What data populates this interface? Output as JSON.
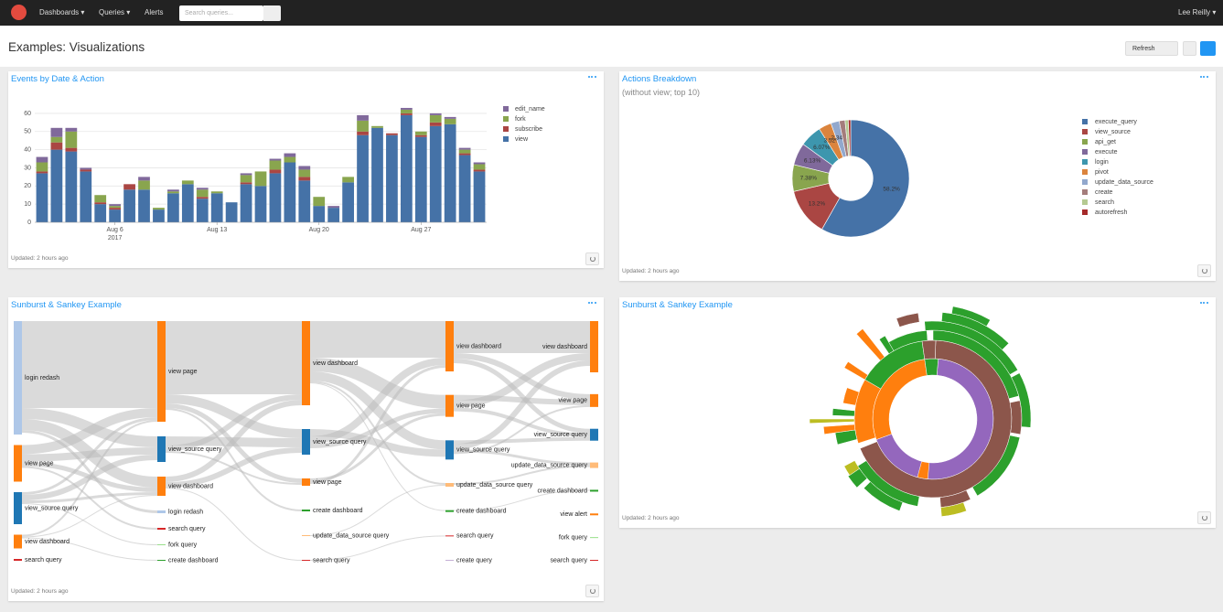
{
  "nav": {
    "menu": [
      "Dashboards",
      "Queries",
      "Alerts"
    ],
    "search_placeholder": "Search queries...",
    "user": "Lee Reilly"
  },
  "page": {
    "title": "Examples: Visualizations",
    "refresh_button": "Refresh"
  },
  "widgets": [
    {
      "title": "Events by Date & Action",
      "updated": "Updated: 2 hours ago",
      "chart_data": {
        "type": "bar",
        "stacked": true,
        "grid": true,
        "legend": "right",
        "x": [
          "2017-08-01",
          "2017-08-02",
          "2017-08-03",
          "2017-08-04",
          "2017-08-05",
          "2017-08-06",
          "2017-08-07",
          "2017-08-08",
          "2017-08-09",
          "2017-08-10",
          "2017-08-11",
          "2017-08-12",
          "2017-08-13",
          "2017-08-14",
          "2017-08-15",
          "2017-08-16",
          "2017-08-17",
          "2017-08-18",
          "2017-08-19",
          "2017-08-20",
          "2017-08-21",
          "2017-08-22",
          "2017-08-23",
          "2017-08-24",
          "2017-08-25",
          "2017-08-26",
          "2017-08-27",
          "2017-08-28",
          "2017-08-29",
          "2017-08-30",
          "2017-08-31"
        ],
        "series": [
          {
            "name": "view",
            "color": "#4572a7",
            "values": [
              27,
              40,
              39,
              28,
              10,
              7,
              18,
              18,
              7,
              16,
              21,
              13,
              16,
              11,
              21,
              20,
              27,
              33,
              23,
              9,
              8,
              22,
              48,
              52,
              48,
              59,
              47,
              53,
              54,
              37,
              28
            ]
          },
          {
            "name": "subscribe",
            "color": "#aa4643",
            "values": [
              1,
              4,
              2,
              1,
              1,
              1,
              3,
              0,
              0,
              0,
              0,
              1,
              0,
              0,
              1,
              0,
              2,
              0,
              2,
              0,
              0,
              0,
              2,
              0,
              1,
              1,
              1,
              2,
              0,
              1,
              1
            ]
          },
          {
            "name": "fork",
            "color": "#89a54e",
            "values": [
              5,
              3,
              9,
              0,
              4,
              1,
              0,
              5,
              1,
              1,
              2,
              4,
              1,
              0,
              4,
              8,
              5,
              3,
              4,
              5,
              0,
              3,
              6,
              1,
              0,
              2,
              2,
              4,
              3,
              2,
              3
            ]
          },
          {
            "name": "edit_name",
            "color": "#80699b",
            "values": [
              3,
              5,
              2,
              1,
              0,
              1,
              0,
              2,
              0,
              1,
              0,
              1,
              0,
              0,
              1,
              0,
              1,
              2,
              2,
              0,
              1,
              0,
              3,
              0,
              0,
              1,
              0,
              1,
              1,
              1,
              1
            ]
          }
        ],
        "ylim": [
          0,
          65
        ],
        "yticks": [
          0,
          10,
          20,
          30,
          40,
          50,
          60
        ],
        "xticks": [
          {
            "value": "2017-08-06",
            "label": "Aug 6\n2017"
          },
          {
            "value": "2017-08-13",
            "label": "Aug 13"
          },
          {
            "value": "2017-08-20",
            "label": "Aug 20"
          },
          {
            "value": "2017-08-27",
            "label": "Aug 27"
          }
        ]
      }
    },
    {
      "title": "Actions Breakdown",
      "subtitle": "(without view; top 10)",
      "updated": "Updated: 2 hours ago",
      "chart_data": {
        "type": "pie",
        "hole": 0.38,
        "legend": "right",
        "categories": [
          "execute_query",
          "view_source",
          "api_get",
          "execute",
          "login",
          "pivot",
          "update_data_source",
          "create",
          "search",
          "autorefresh"
        ],
        "values": [
          58.2,
          13.2,
          7.38,
          6.13,
          6.07,
          3.52,
          2.34,
          1.6,
          0.9,
          0.66
        ],
        "value_labels": [
          "58.2%",
          "13.2%",
          "7.38%",
          "6.13%",
          "6.07%",
          "3.52%",
          "2.34%",
          null,
          null,
          null
        ],
        "colors": [
          "#4572a7",
          "#aa4643",
          "#89a54e",
          "#80699b",
          "#3d96ae",
          "#db843d",
          "#92a8cd",
          "#a47d7c",
          "#b5ca92",
          "#a52a2a"
        ]
      }
    },
    {
      "title": "Sunburst & Sankey Example",
      "updated": "Updated: 2 hours ago",
      "chart_data": {
        "type": "sankey",
        "columns": [
          [
            {
              "name": "login redash",
              "value": 124,
              "color": "#aec7e8"
            },
            {
              "name": "view page",
              "value": 40,
              "color": "#ff7f0e"
            },
            {
              "name": "view_source query",
              "value": 35,
              "color": "#1f77b4"
            },
            {
              "name": "view dashboard",
              "value": 15,
              "color": "#ff7f0e"
            },
            {
              "name": "search query",
              "value": 2,
              "color": "#d62728"
            }
          ],
          [
            {
              "name": "view page",
              "value": 110,
              "color": "#ff7f0e"
            },
            {
              "name": "view_source query",
              "value": 28,
              "color": "#1f77b4"
            },
            {
              "name": "view dashboard",
              "value": 21,
              "color": "#ff7f0e"
            },
            {
              "name": "login redash",
              "value": 3,
              "color": "#aec7e8"
            },
            {
              "name": "search query",
              "value": 2,
              "color": "#d62728"
            },
            {
              "name": "fork query",
              "value": 1,
              "color": "#98df8a"
            },
            {
              "name": "create dashboard",
              "value": 1,
              "color": "#2ca02c"
            }
          ],
          [
            {
              "name": "view dashboard",
              "value": 92,
              "color": "#ff7f0e"
            },
            {
              "name": "view_source query",
              "value": 28,
              "color": "#1f77b4"
            },
            {
              "name": "view page",
              "value": 8,
              "color": "#ff7f0e"
            },
            {
              "name": "create dashboard",
              "value": 2,
              "color": "#2ca02c"
            },
            {
              "name": "update_data_source query",
              "value": 1,
              "color": "#ffbb78"
            },
            {
              "name": "search query",
              "value": 1,
              "color": "#d62728"
            }
          ],
          [
            {
              "name": "view dashboard",
              "value": 55,
              "color": "#ff7f0e"
            },
            {
              "name": "view page",
              "value": 24,
              "color": "#ff7f0e"
            },
            {
              "name": "view_source query",
              "value": 21,
              "color": "#1f77b4"
            },
            {
              "name": "update_data_source query",
              "value": 4,
              "color": "#ffbb78"
            },
            {
              "name": "create dashboard",
              "value": 2,
              "color": "#2ca02c"
            },
            {
              "name": "search query",
              "value": 1,
              "color": "#d62728"
            },
            {
              "name": "create query",
              "value": 1,
              "color": "#c5b0d5"
            }
          ],
          [
            {
              "name": "view dashboard",
              "value": 56,
              "color": "#ff7f0e"
            },
            {
              "name": "view page",
              "value": 14,
              "color": "#ff7f0e"
            },
            {
              "name": "view_source query",
              "value": 13,
              "color": "#1f77b4"
            },
            {
              "name": "update_data_source query",
              "value": 6,
              "color": "#ffbb78"
            },
            {
              "name": "create dashboard",
              "value": 2,
              "color": "#2ca02c"
            },
            {
              "name": "view alert",
              "value": 2,
              "color": "#ff7f0e"
            },
            {
              "name": "fork query",
              "value": 1,
              "color": "#98df8a"
            },
            {
              "name": "search query",
              "value": 1,
              "color": "#d62728"
            }
          ]
        ],
        "links": [
          [
            {
              "source": "login redash",
              "target": "view page",
              "value": 95
            },
            {
              "source": "login redash",
              "target": "view_source query",
              "value": 12
            },
            {
              "source": "login redash",
              "target": "view dashboard",
              "value": 12
            },
            {
              "source": "login redash",
              "target": "login redash",
              "value": 3
            },
            {
              "source": "view page",
              "target": "view page",
              "value": 10
            },
            {
              "source": "view page",
              "target": "view_source query",
              "value": 8
            },
            {
              "source": "view page",
              "target": "view dashboard",
              "value": 5
            },
            {
              "source": "view page",
              "target": "search query",
              "value": 2
            },
            {
              "source": "view_source query",
              "target": "view page",
              "value": 3
            },
            {
              "source": "view_source query",
              "target": "view_source query",
              "value": 6
            },
            {
              "source": "view_source query",
              "target": "view dashboard",
              "value": 3
            },
            {
              "source": "view_source query",
              "target": "fork query",
              "value": 1
            },
            {
              "source": "view dashboard",
              "target": "view page",
              "value": 2
            },
            {
              "source": "view dashboard",
              "target": "view dashboard",
              "value": 1
            },
            {
              "source": "view dashboard",
              "target": "create dashboard",
              "value": 1
            }
          ],
          [
            {
              "source": "view page",
              "target": "view dashboard",
              "value": 80
            },
            {
              "source": "view page",
              "target": "view_source query",
              "value": 10
            },
            {
              "source": "view page",
              "target": "view page",
              "value": 5
            },
            {
              "source": "view page",
              "target": "create dashboard",
              "value": 2
            },
            {
              "source": "view_source query",
              "target": "view_source query",
              "value": 10
            },
            {
              "source": "view_source query",
              "target": "view dashboard",
              "value": 6
            },
            {
              "source": "view_source query",
              "target": "view page",
              "value": 2
            },
            {
              "source": "view dashboard",
              "target": "view dashboard",
              "value": 6
            },
            {
              "source": "view dashboard",
              "target": "view_source query",
              "value": 6
            },
            {
              "source": "view dashboard",
              "target": "search query",
              "value": 1
            }
          ],
          [
            {
              "source": "view dashboard",
              "target": "view dashboard",
              "value": 40
            },
            {
              "source": "view dashboard",
              "target": "view page",
              "value": 15
            },
            {
              "source": "view dashboard",
              "target": "view_source query",
              "value": 10
            },
            {
              "source": "view dashboard",
              "target": "update_data_source query",
              "value": 2
            },
            {
              "source": "view dashboard",
              "target": "create dashboard",
              "value": 1
            },
            {
              "source": "view_source query",
              "target": "view_source query",
              "value": 8
            },
            {
              "source": "view_source query",
              "target": "view dashboard",
              "value": 8
            },
            {
              "source": "view_source query",
              "target": "view page",
              "value": 5
            },
            {
              "source": "view page",
              "target": "view page",
              "value": 3
            },
            {
              "source": "view page",
              "target": "view dashboard",
              "value": 3
            },
            {
              "source": "update_data_source query",
              "target": "update_data_source query",
              "value": 1
            },
            {
              "source": "search query",
              "target": "search query",
              "value": 1
            }
          ],
          [
            {
              "source": "view dashboard",
              "target": "view dashboard",
              "value": 35
            },
            {
              "source": "view dashboard",
              "target": "view page",
              "value": 6
            },
            {
              "source": "view dashboard",
              "target": "view_source query",
              "value": 5
            },
            {
              "source": "view page",
              "target": "view page",
              "value": 6
            },
            {
              "source": "view page",
              "target": "view dashboard",
              "value": 8
            },
            {
              "source": "view page",
              "target": "view_source query",
              "value": 4
            },
            {
              "source": "view_source query",
              "target": "view_source query",
              "value": 4
            },
            {
              "source": "view_source query",
              "target": "view dashboard",
              "value": 6
            },
            {
              "source": "view_source query",
              "target": "update_data_source query",
              "value": 3
            },
            {
              "source": "view_source query",
              "target": "view page",
              "value": 2
            },
            {
              "source": "update_data_source query",
              "target": "update_data_source query",
              "value": 2
            },
            {
              "source": "create dashboard",
              "target": "create dashboard",
              "value": 1
            }
          ]
        ]
      }
    },
    {
      "title": "Sunburst & Sankey Example",
      "updated": "Updated: 2 hours ago"
    }
  ]
}
